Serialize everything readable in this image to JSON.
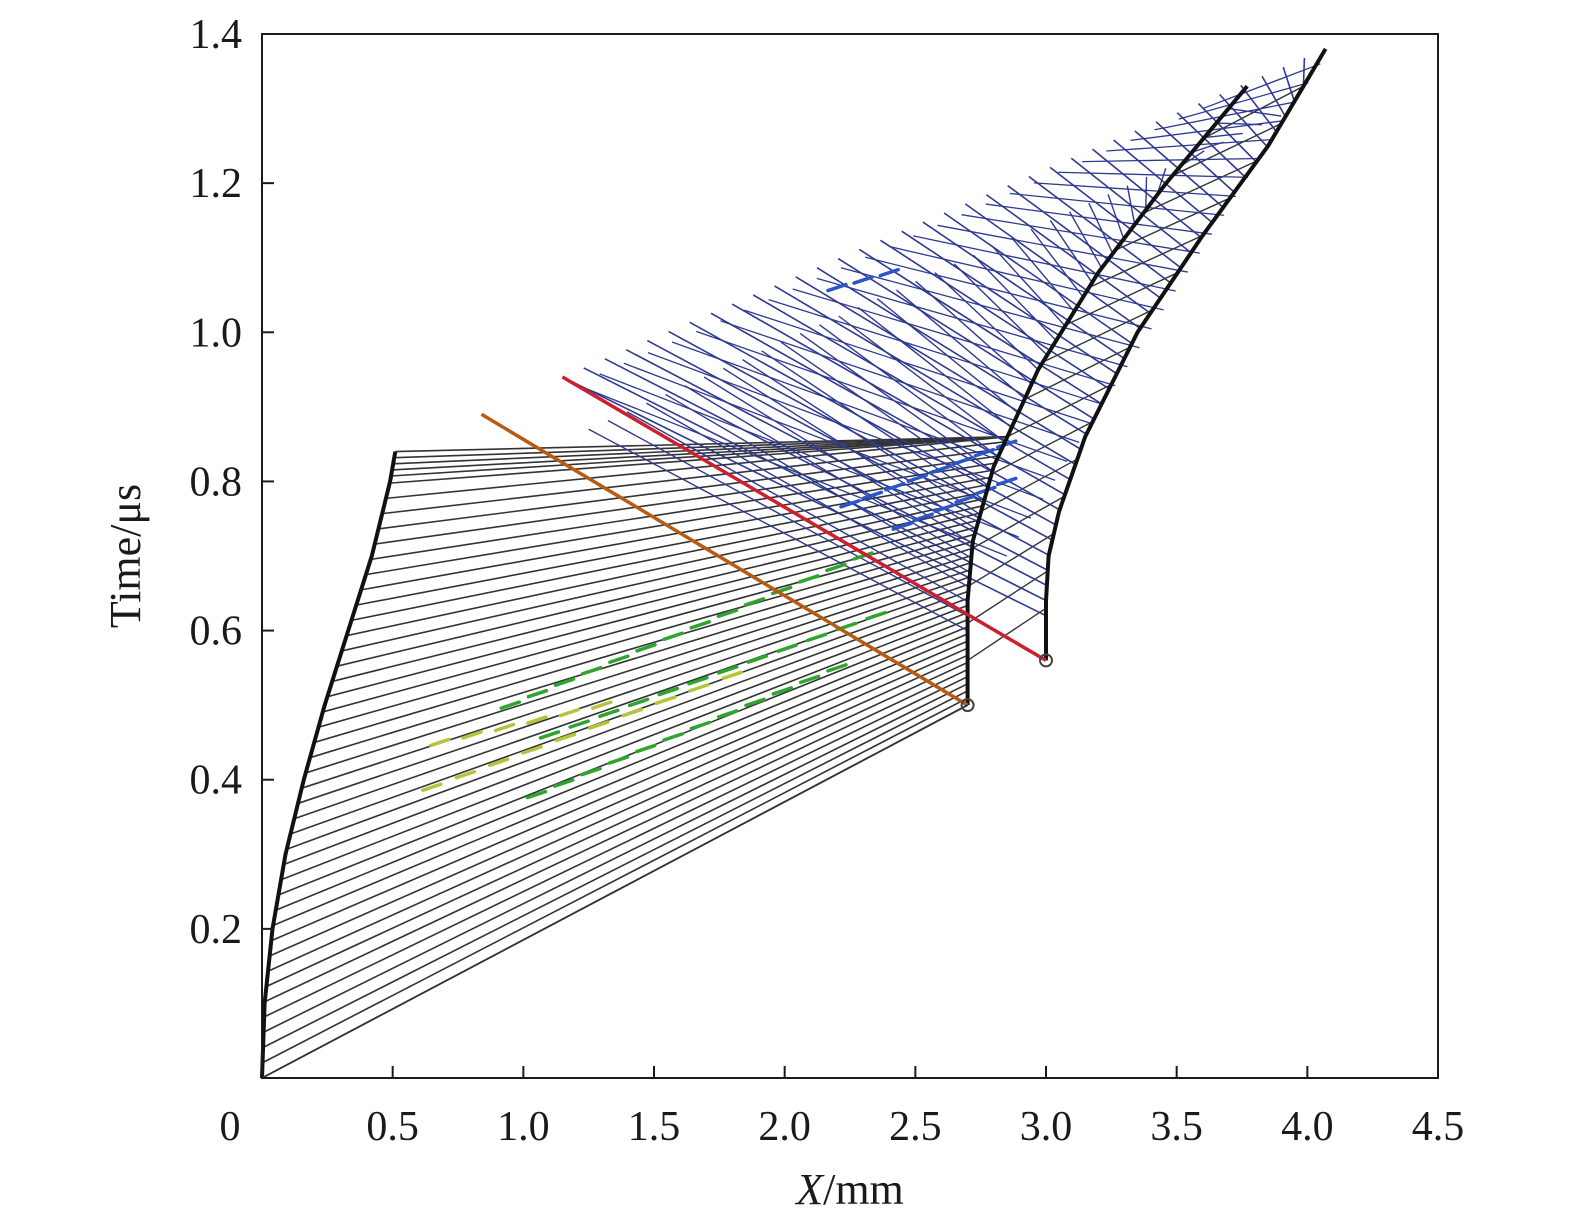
{
  "chart_data": {
    "type": "line",
    "title": "",
    "xlabel_var": "X",
    "xlabel_unit": "/mm",
    "ylabel": "Time/μs",
    "xlim": [
      0,
      4.5
    ],
    "ylim": [
      0,
      1.4
    ],
    "x_ticks": [
      {
        "value": 0,
        "label": "0"
      },
      {
        "value": 0.5,
        "label": "0.5"
      },
      {
        "value": 1.0,
        "label": "1.0"
      },
      {
        "value": 1.5,
        "label": "1.5"
      },
      {
        "value": 2.0,
        "label": "2.0"
      },
      {
        "value": 2.5,
        "label": "2.5"
      },
      {
        "value": 3.0,
        "label": "3.0"
      },
      {
        "value": 3.5,
        "label": "3.5"
      },
      {
        "value": 4.0,
        "label": "4.0"
      },
      {
        "value": 4.5,
        "label": "4.5"
      }
    ],
    "y_ticks": [
      {
        "value": 0.2,
        "label": "0.2"
      },
      {
        "value": 0.4,
        "label": "0.4"
      },
      {
        "value": 0.6,
        "label": "0.6"
      },
      {
        "value": 0.8,
        "label": "0.8"
      },
      {
        "value": 1.0,
        "label": "1.0"
      },
      {
        "value": 1.2,
        "label": "1.2"
      },
      {
        "value": 1.4,
        "label": "1.4"
      }
    ],
    "grid": false,
    "legend": "none",
    "colors": {
      "boundary": "#111111",
      "characteristics": "#333333",
      "wave_net": "#2e3a8f",
      "front_red": "#cc1f2f",
      "front_orange": "#b85a12",
      "green_marks": "#2fa52f",
      "yellow_marks": "#b8c23a",
      "blue_marks": "#2b56c9",
      "marker": "#444444"
    },
    "series": [
      {
        "role": "free-surface",
        "color_key": "boundary",
        "points": [
          [
            0.0,
            0.0
          ],
          [
            0.01,
            0.1
          ],
          [
            0.04,
            0.2
          ],
          [
            0.09,
            0.3
          ],
          [
            0.16,
            0.4
          ],
          [
            0.24,
            0.5
          ],
          [
            0.33,
            0.6
          ],
          [
            0.42,
            0.7
          ],
          [
            0.49,
            0.8
          ],
          [
            0.51,
            0.84
          ]
        ]
      },
      {
        "role": "interface-1",
        "color_key": "boundary",
        "points": [
          [
            2.7,
            0.5
          ],
          [
            2.7,
            0.58
          ],
          [
            2.7,
            0.64
          ],
          [
            2.72,
            0.72
          ],
          [
            2.8,
            0.82
          ],
          [
            2.97,
            0.95
          ],
          [
            3.2,
            1.08
          ],
          [
            3.46,
            1.2
          ],
          [
            3.77,
            1.33
          ]
        ]
      },
      {
        "role": "interface-2",
        "color_key": "boundary",
        "points": [
          [
            3.0,
            0.56
          ],
          [
            3.0,
            0.64
          ],
          [
            3.01,
            0.7
          ],
          [
            3.05,
            0.76
          ],
          [
            3.15,
            0.86
          ],
          [
            3.35,
            1.0
          ],
          [
            3.6,
            1.13
          ],
          [
            3.85,
            1.25
          ],
          [
            4.07,
            1.38
          ]
        ]
      },
      {
        "role": "front-orange",
        "color_key": "front_orange",
        "points": [
          [
            0.84,
            0.89
          ],
          [
            2.7,
            0.5
          ]
        ]
      },
      {
        "role": "front-red",
        "color_key": "front_red",
        "points": [
          [
            1.15,
            0.94
          ],
          [
            3.0,
            0.56
          ]
        ]
      },
      {
        "role": "impact-characteristic",
        "color_key": "characteristics",
        "points": [
          [
            0.0,
            0.0
          ],
          [
            2.7,
            0.5
          ]
        ]
      }
    ],
    "markers": [
      {
        "x": 2.7,
        "y": 0.5
      },
      {
        "x": 3.0,
        "y": 0.56
      }
    ]
  }
}
